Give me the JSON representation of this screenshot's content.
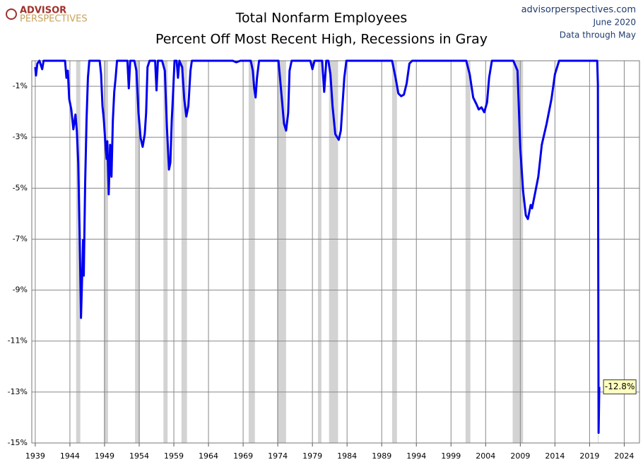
{
  "chart_data": {
    "type": "line",
    "logo": [
      "ADVISOR",
      "PERSPECTIVES"
    ],
    "title": "Total Nonfarm Employees",
    "subtitle": "Percent Off Most Recent High, Recessions in Gray",
    "source": "advisorperspectives.com",
    "date": "June 2020",
    "note": "Data through May",
    "xlim": [
      1938.5,
      2026.2
    ],
    "xticks": [
      1939,
      1944,
      1949,
      1954,
      1959,
      1964,
      1969,
      1974,
      1979,
      1984,
      1989,
      1994,
      1999,
      2004,
      2009,
      2014,
      2019,
      2024
    ],
    "ylim": [
      -15,
      0
    ],
    "yticks": [
      {
        "value": -1,
        "label": "-1%"
      },
      {
        "value": -3,
        "label": "-3%"
      },
      {
        "value": -5,
        "label": "-5%"
      },
      {
        "value": -7,
        "label": "-7%"
      },
      {
        "value": -9,
        "label": "-9%"
      },
      {
        "value": -11,
        "label": "-11%"
      },
      {
        "value": -13,
        "label": "-13%"
      },
      {
        "value": -15,
        "label": "-15%"
      }
    ],
    "grid": true,
    "recession_color": "#d3d3d3",
    "recessions": [
      [
        1944.9,
        1945.5
      ],
      [
        1948.9,
        1949.5
      ],
      [
        1953.4,
        1954.1
      ],
      [
        1957.5,
        1958.1
      ],
      [
        1960.1,
        1960.9
      ],
      [
        1969.8,
        1970.7
      ],
      [
        1973.9,
        1975.2
      ],
      [
        1979.8,
        1980.3
      ],
      [
        1981.4,
        1982.7
      ],
      [
        1990.5,
        1991.2
      ],
      [
        2001.1,
        2001.8
      ],
      [
        2007.9,
        2009.4
      ],
      [
        2020.2,
        2020.3
      ]
    ],
    "series": [
      {
        "color": "#0000ee",
        "x": [
          1939.0,
          1939.1,
          1939.3,
          1939.6,
          1940.0,
          1940.2,
          1943.3,
          1943.5,
          1943.7,
          1943.9,
          1944.2,
          1944.5,
          1944.8,
          1945.0,
          1945.2,
          1945.4,
          1945.6,
          1945.8,
          1945.9,
          1946.0,
          1946.2,
          1946.4,
          1946.6,
          1946.8,
          1948.3,
          1948.5,
          1948.7,
          1948.9,
          1949.1,
          1949.3,
          1949.4,
          1949.6,
          1949.8,
          1950.0,
          1950.2,
          1950.4,
          1950.6,
          1950.8,
          1952.3,
          1952.5,
          1952.7,
          1953.3,
          1953.6,
          1953.9,
          1954.2,
          1954.5,
          1954.8,
          1955.0,
          1955.2,
          1955.5,
          1956.3,
          1956.5,
          1956.7,
          1957.3,
          1957.7,
          1958.0,
          1958.3,
          1958.5,
          1958.7,
          1958.9,
          1959.1,
          1959.4,
          1959.6,
          1959.8,
          1960.2,
          1960.5,
          1960.8,
          1961.1,
          1961.4,
          1961.6,
          1967.5,
          1968.0,
          1968.6,
          1970.1,
          1970.4,
          1970.6,
          1970.8,
          1971.0,
          1971.3,
          1974.1,
          1974.5,
          1974.9,
          1975.2,
          1975.5,
          1975.7,
          1976.0,
          1978.7,
          1979.0,
          1979.3,
          1980.4,
          1980.7,
          1981.0,
          1981.3,
          1981.6,
          1981.9,
          1982.3,
          1982.8,
          1983.1,
          1983.4,
          1983.6,
          1983.9,
          1990.5,
          1991.0,
          1991.4,
          1991.8,
          1992.2,
          1992.6,
          1993.0,
          1993.4,
          2001.2,
          2001.7,
          2002.2,
          2002.7,
          2003.0,
          2003.4,
          2003.8,
          2004.2,
          2004.5,
          2004.9,
          2008.0,
          2008.6,
          2009.0,
          2009.4,
          2009.8,
          2010.1,
          2010.5,
          2010.7,
          2011.0,
          2011.6,
          2012.1,
          2012.8,
          2013.5,
          2014.0,
          2014.6,
          2020.1,
          2020.2,
          2020.3,
          2020.4
        ],
        "values": [
          -0.25,
          -0.58,
          -0.11,
          0,
          -0.33,
          0,
          0,
          -0.67,
          -0.39,
          -1.5,
          -1.91,
          -2.69,
          -2.11,
          -2.74,
          -3.99,
          -6.76,
          -10.09,
          -8.15,
          -7.04,
          -8.43,
          -4.82,
          -2.33,
          -0.67,
          0,
          0,
          -0.53,
          -1.77,
          -2.33,
          -3.16,
          -3.85,
          -3.16,
          -5.24,
          -3.3,
          -4.55,
          -2.33,
          -1.22,
          -0.67,
          0,
          0,
          -1.08,
          0,
          0,
          -0.39,
          -2.05,
          -3.02,
          -3.38,
          -2.88,
          -2.05,
          -0.25,
          0,
          0,
          -1.16,
          0,
          0,
          -0.39,
          -2.61,
          -4.27,
          -3.99,
          -2.33,
          -1.22,
          0,
          0,
          -0.67,
          0,
          -0.25,
          -1.5,
          -2.19,
          -1.77,
          -0.39,
          0,
          0,
          -0.06,
          0,
          0,
          -0.39,
          -1.08,
          -1.44,
          -0.67,
          0,
          0,
          -1.22,
          -2.47,
          -2.74,
          -2.05,
          -0.39,
          0,
          0,
          -0.33,
          0,
          0,
          -1.22,
          0,
          0,
          -0.53,
          -1.77,
          -2.88,
          -3.1,
          -2.74,
          -1.5,
          -0.67,
          0,
          0,
          -0.67,
          -1.28,
          -1.39,
          -1.33,
          -0.89,
          -0.11,
          0,
          0,
          -0.53,
          -1.44,
          -1.72,
          -1.91,
          -1.83,
          -2.02,
          -1.64,
          -0.67,
          0,
          0,
          -0.39,
          -3.44,
          -5.1,
          -6.07,
          -6.21,
          -5.66,
          -5.79,
          -5.38,
          -4.55,
          -3.3,
          -2.47,
          -1.5,
          -0.53,
          0,
          0,
          -0.92,
          -14.6,
          -12.8
        ],
        "end_label": "-12.8%"
      }
    ]
  }
}
